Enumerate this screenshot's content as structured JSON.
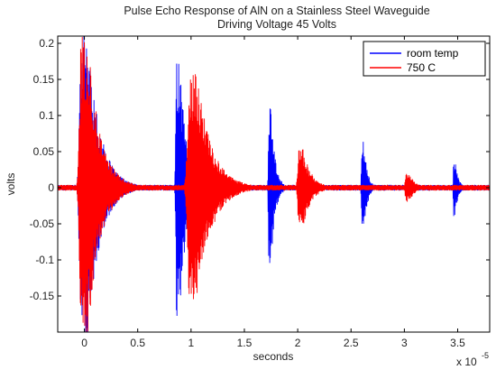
{
  "chart_data": {
    "type": "line",
    "title": "Pulse Echo Response of AlN on a Stainless Steel Waveguide",
    "subtitle": "Driving Voltage 45 Volts",
    "xlabel": "seconds",
    "ylabel": "volts",
    "x_exponent_label": "x 10",
    "x_exponent_power": "-5",
    "xlim": [
      -0.25,
      3.8
    ],
    "ylim": [
      -0.2,
      0.21
    ],
    "xticks": [
      0,
      0.5,
      1,
      1.5,
      2,
      2.5,
      3,
      3.5
    ],
    "xtick_labels": [
      "0",
      "0.5",
      "1",
      "1.5",
      "2",
      "2.5",
      "3",
      "3.5"
    ],
    "yticks": [
      0.2,
      0.15,
      0.1,
      0.05,
      0,
      -0.05,
      -0.1,
      -0.15
    ],
    "ytick_labels": [
      "0.2",
      "0.15",
      "0.1",
      "0.05",
      "0",
      "-0.05",
      "-0.1",
      "-0.15"
    ],
    "legend_position": "top-right",
    "series": [
      {
        "name": "room temp",
        "color": "#0000ff",
        "peaks": [
          {
            "x": 0.0,
            "amp": 0.21,
            "width": 0.12
          },
          {
            "x": 0.88,
            "amp": 0.185,
            "width": 0.06
          },
          {
            "x": 1.74,
            "amp": 0.11,
            "width": 0.04
          },
          {
            "x": 2.61,
            "amp": 0.065,
            "width": 0.035
          },
          {
            "x": 3.47,
            "amp": 0.04,
            "width": 0.03
          }
        ]
      },
      {
        "name": "750 C",
        "color": "#ff0000",
        "peaks": [
          {
            "x": 0.0,
            "amp": 0.21,
            "width": 0.12
          },
          {
            "x": 0.28,
            "amp": 0.015,
            "width": 0.08
          },
          {
            "x": 1.02,
            "amp": 0.16,
            "width": 0.14
          },
          {
            "x": 2.03,
            "amp": 0.055,
            "width": 0.08
          },
          {
            "x": 3.03,
            "amp": 0.02,
            "width": 0.06
          }
        ]
      }
    ]
  }
}
